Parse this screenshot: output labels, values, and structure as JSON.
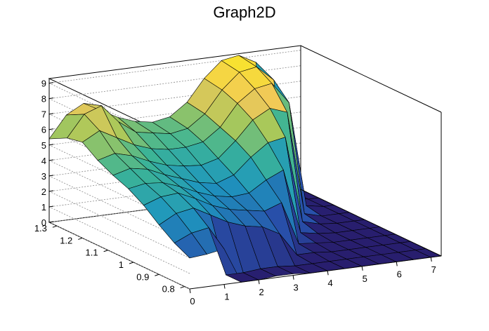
{
  "chart_data": {
    "type": "surface",
    "title": "Graph2D",
    "xlabel": "",
    "ylabel": "",
    "zlabel": "",
    "x_range": [
      0,
      7.3
    ],
    "y_range": [
      0.78,
      1.33
    ],
    "z_range": [
      0,
      9.3
    ],
    "x_ticks": [
      0,
      1,
      2,
      3,
      4,
      5,
      6,
      7
    ],
    "y_ticks": [
      0.8,
      0.9,
      1,
      1.1,
      1.2,
      1.3
    ],
    "z_ticks": [
      0,
      1,
      2,
      3,
      4,
      5,
      6,
      7,
      8,
      9
    ],
    "grid": true,
    "colormap": "viridis-like (dark blue to yellow)",
    "surface_description": "High ridge along the back left (z 5-8 at small x), surface dips toward the middle, steep wall up to ~9 near x 5.5-6.5 at high y, flat near-zero floor at large x / low y",
    "x_grid": [
      0,
      0.5,
      1,
      1.5,
      2,
      2.5,
      3,
      3.5,
      4,
      4.5,
      5,
      5.5,
      6,
      6.5,
      7,
      7.3
    ],
    "y_grid": [
      0.78,
      0.84,
      0.9,
      0.96,
      1.02,
      1.08,
      1.14,
      1.2,
      1.26,
      1.33
    ],
    "z_values": [
      [
        2.0,
        2.1,
        2.3,
        0.0,
        0.0,
        0.1,
        0.1,
        0.0,
        0.0,
        0.0,
        0.0,
        0.0,
        0.0,
        0.0,
        0.0,
        0.0
      ],
      [
        2.5,
        3.0,
        3.2,
        0.0,
        0.0,
        0.1,
        0.1,
        0.0,
        0.0,
        0.0,
        0.0,
        0.0,
        0.0,
        0.0,
        0.0,
        0.0
      ],
      [
        3.2,
        3.8,
        4.0,
        3.4,
        2.8,
        2.4,
        2.2,
        1.6,
        0.1,
        0.1,
        0.0,
        0.0,
        0.0,
        0.0,
        0.0,
        0.0
      ],
      [
        4.0,
        4.4,
        4.5,
        4.0,
        3.4,
        3.0,
        2.8,
        2.6,
        3.0,
        0.2,
        0.1,
        0.0,
        0.0,
        0.0,
        0.0,
        0.0
      ],
      [
        4.6,
        4.8,
        4.7,
        4.3,
        3.8,
        3.4,
        3.2,
        3.3,
        4.0,
        4.5,
        0.3,
        0.1,
        0.0,
        0.0,
        0.0,
        0.0
      ],
      [
        5.0,
        5.3,
        5.1,
        4.6,
        4.2,
        3.8,
        3.6,
        4.0,
        5.0,
        5.8,
        6.0,
        0.4,
        0.1,
        0.0,
        0.0,
        0.0
      ],
      [
        5.5,
        5.8,
        5.5,
        5.0,
        4.6,
        4.4,
        4.3,
        4.6,
        5.6,
        6.8,
        7.4,
        7.0,
        0.3,
        0.0,
        0.0,
        0.0
      ],
      [
        6.2,
        6.8,
        6.2,
        5.6,
        5.2,
        5.0,
        5.0,
        5.2,
        6.0,
        7.4,
        8.2,
        8.4,
        7.0,
        0.2,
        0.0,
        0.0
      ],
      [
        6.0,
        7.4,
        7.8,
        6.6,
        5.8,
        5.6,
        5.4,
        5.6,
        6.4,
        7.8,
        8.8,
        9.0,
        8.0,
        0.2,
        0.0,
        0.0
      ],
      [
        5.4,
        6.8,
        7.4,
        6.8,
        6.2,
        5.8,
        5.6,
        5.8,
        6.6,
        8.0,
        9.0,
        9.2,
        8.6,
        0.2,
        0.0,
        0.0
      ]
    ]
  }
}
